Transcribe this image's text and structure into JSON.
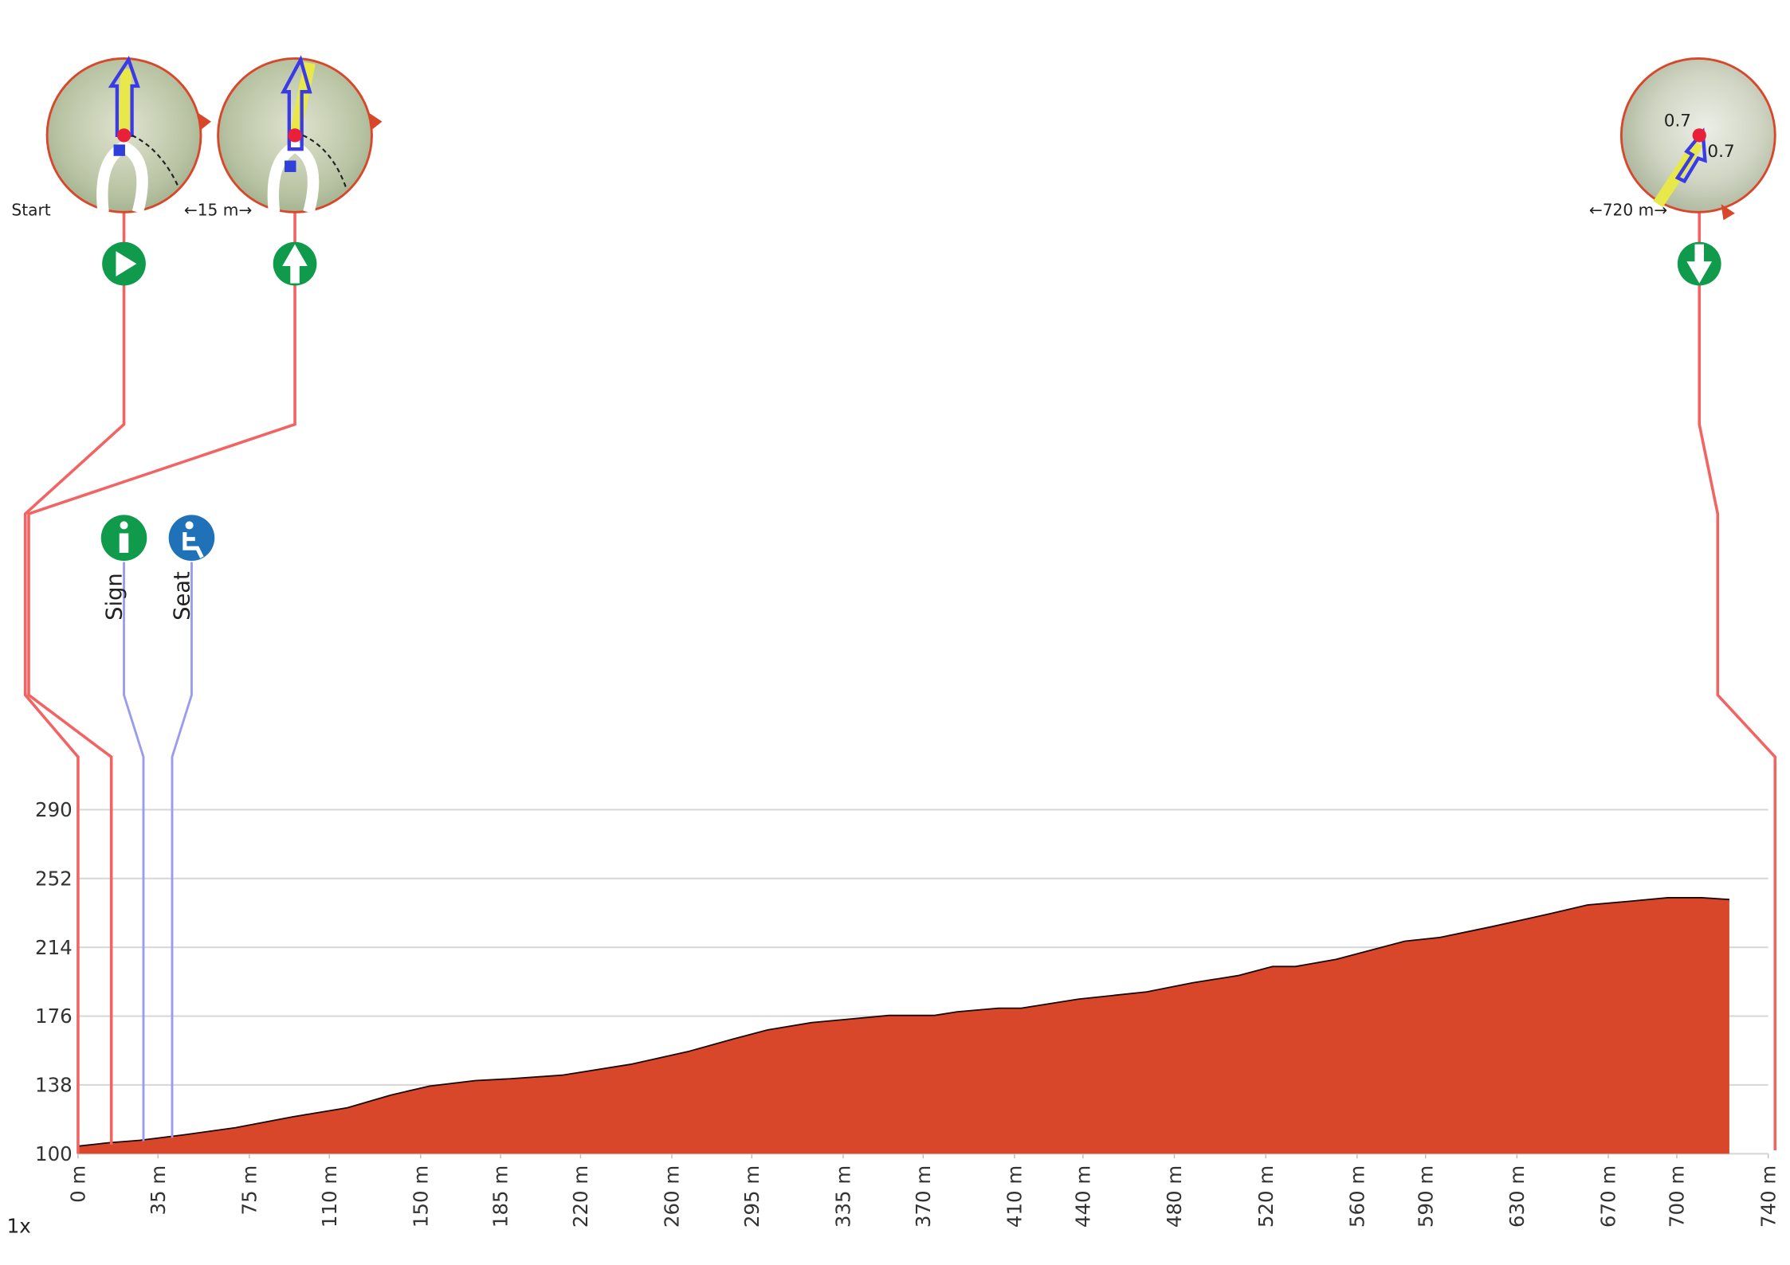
{
  "chart_data": {
    "type": "area",
    "x": [
      0,
      13.6,
      27,
      46,
      69,
      94,
      118,
      137,
      154,
      174,
      189,
      212,
      242,
      267,
      287,
      302,
      321,
      338,
      355,
      375,
      385,
      403,
      413,
      438,
      468,
      488,
      508,
      523,
      533,
      551,
      581,
      596,
      619,
      644,
      661,
      679,
      696,
      711,
      723
    ],
    "values": [
      103.8,
      105.7,
      107,
      110,
      114,
      120,
      125,
      132,
      137,
      140,
      141,
      143,
      149,
      156,
      163,
      168,
      172,
      174,
      176,
      176,
      178,
      180,
      180,
      185,
      189,
      194,
      198,
      203,
      203,
      207,
      217,
      219,
      225,
      232,
      237,
      239,
      241,
      241,
      240
    ],
    "color": "#d9472b",
    "line_color": "#1a0805",
    "xlim": [
      0,
      740
    ],
    "ylim": [
      100,
      290
    ],
    "xticks": [
      {
        "value": 0,
        "label": "0 m"
      },
      {
        "value": 35,
        "label": "35 m"
      },
      {
        "value": 75,
        "label": "75 m"
      },
      {
        "value": 110,
        "label": "110 m"
      },
      {
        "value": 150,
        "label": "150 m"
      },
      {
        "value": 185,
        "label": "185 m"
      },
      {
        "value": 220,
        "label": "220 m"
      },
      {
        "value": 260,
        "label": "260 m"
      },
      {
        "value": 295,
        "label": "295 m"
      },
      {
        "value": 335,
        "label": "335 m"
      },
      {
        "value": 370,
        "label": "370 m"
      },
      {
        "value": 410,
        "label": "410 m"
      },
      {
        "value": 440,
        "label": "440 m"
      },
      {
        "value": 480,
        "label": "480 m"
      },
      {
        "value": 520,
        "label": "520 m"
      },
      {
        "value": 560,
        "label": "560 m"
      },
      {
        "value": 590,
        "label": "590 m"
      },
      {
        "value": 630,
        "label": "630 m"
      },
      {
        "value": 670,
        "label": "670 m"
      },
      {
        "value": 700,
        "label": "700 m"
      },
      {
        "value": 740,
        "label": "740 m"
      }
    ],
    "yticks": [
      100,
      138,
      176,
      214,
      252,
      290
    ],
    "grid": true,
    "waypoints": [
      {
        "label": "Start"
      },
      {
        "label": "←15 m→"
      },
      {
        "label": "←720 m→",
        "map_labels": [
          "0.7",
          "0.7"
        ]
      }
    ],
    "pois": [
      {
        "label": "Sign"
      },
      {
        "label": "Seat"
      }
    ],
    "zoom_label": "1x"
  }
}
